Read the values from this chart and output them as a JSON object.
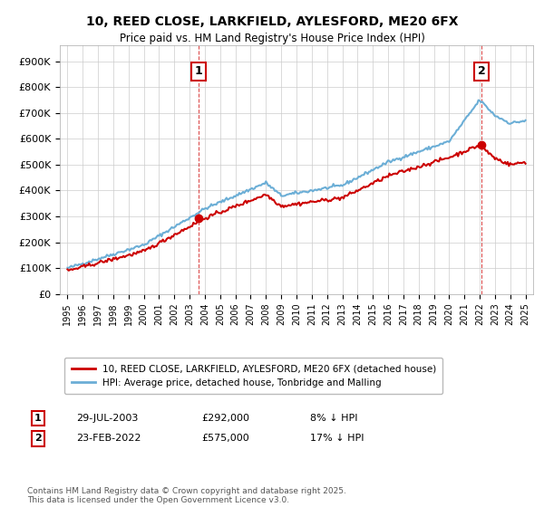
{
  "title": "10, REED CLOSE, LARKFIELD, AYLESFORD, ME20 6FX",
  "subtitle": "Price paid vs. HM Land Registry's House Price Index (HPI)",
  "legend_line1": "10, REED CLOSE, LARKFIELD, AYLESFORD, ME20 6FX (detached house)",
  "legend_line2": "HPI: Average price, detached house, Tonbridge and Malling",
  "footnote": "Contains HM Land Registry data © Crown copyright and database right 2025.\nThis data is licensed under the Open Government Licence v3.0.",
  "sale1_date": "29-JUL-2003",
  "sale1_price": "£292,000",
  "sale1_hpi": "8% ↓ HPI",
  "sale1_year": 2003.57,
  "sale1_value": 292000,
  "sale2_date": "23-FEB-2022",
  "sale2_price": "£575,000",
  "sale2_hpi": "17% ↓ HPI",
  "sale2_year": 2022.13,
  "sale2_value": 575000,
  "hpi_color": "#6baed6",
  "sale_color": "#cc0000",
  "marker_color": "#cc0000",
  "dashed_line_color": "#cc0000",
  "background_color": "#ffffff",
  "grid_color": "#cccccc",
  "ylim": [
    0,
    960000
  ],
  "xlim_start": 1994.5,
  "xlim_end": 2025.5
}
